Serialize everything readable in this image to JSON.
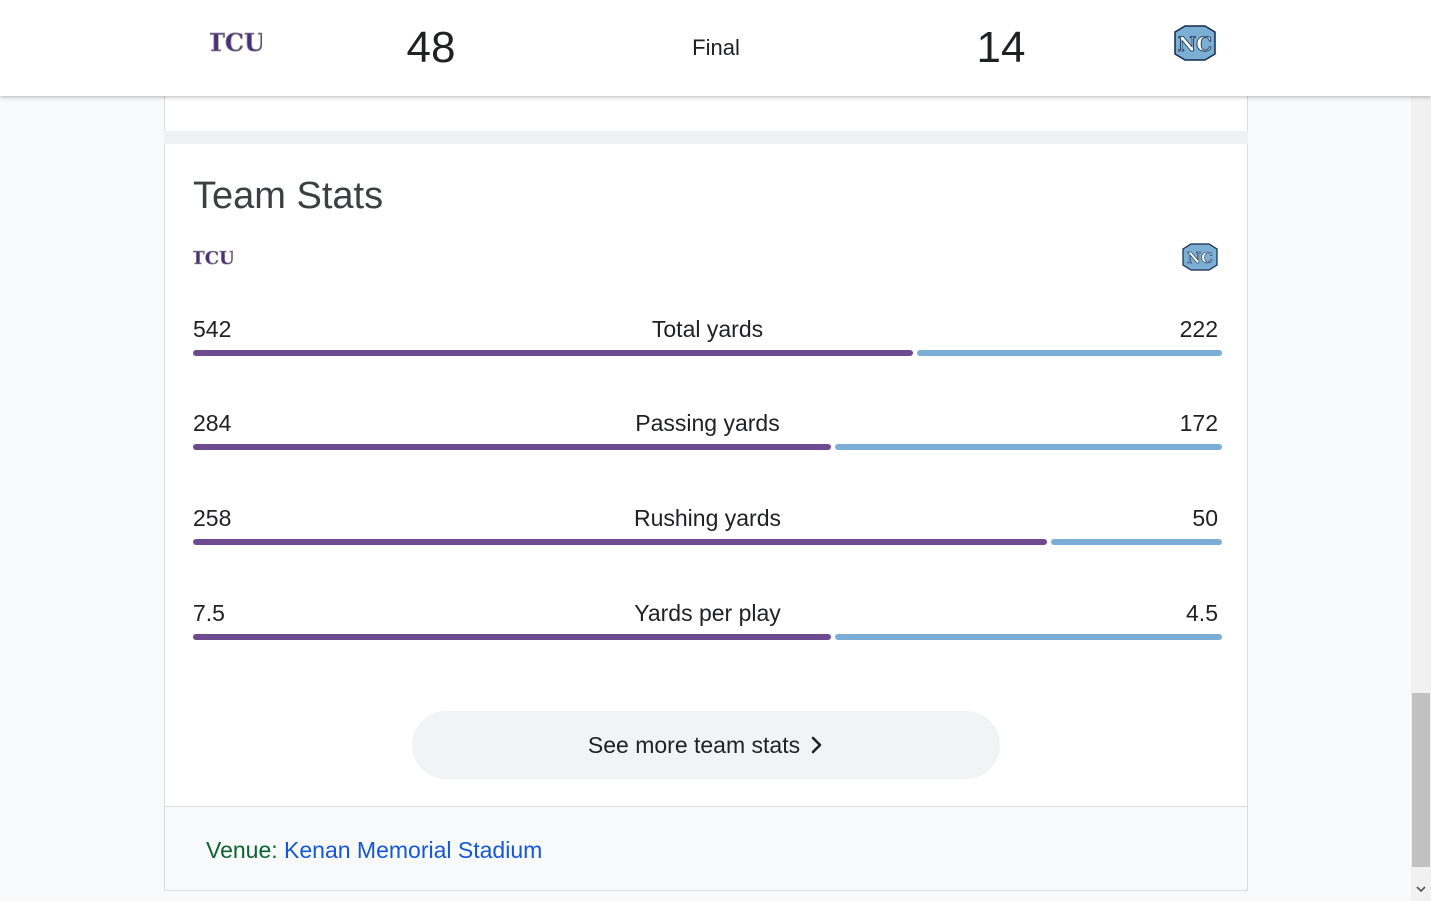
{
  "header": {
    "home_team_logo": "tcu-logo",
    "home_score": "48",
    "status": "Final",
    "away_score": "14",
    "away_team_logo": "unc-logo",
    "home_logo_text": "TCU",
    "away_logo_text": "NC"
  },
  "team_stats": {
    "title": "Team Stats",
    "colors": {
      "home": "#6e4a91",
      "away": "#7baed6"
    },
    "rows": [
      {
        "label": "Total yards",
        "home": "542",
        "away": "222",
        "home_share": 0.7
      },
      {
        "label": "Passing yards",
        "home": "284",
        "away": "172",
        "home_share": 0.62
      },
      {
        "label": "Rushing yards",
        "home": "258",
        "away": "50",
        "home_share": 0.83
      },
      {
        "label": "Yards per play",
        "home": "7.5",
        "away": "4.5",
        "home_share": 0.62
      }
    ],
    "more_button": "See more team stats"
  },
  "venue": {
    "label": "Venue: ",
    "name": "Kenan Memorial Stadium"
  }
}
